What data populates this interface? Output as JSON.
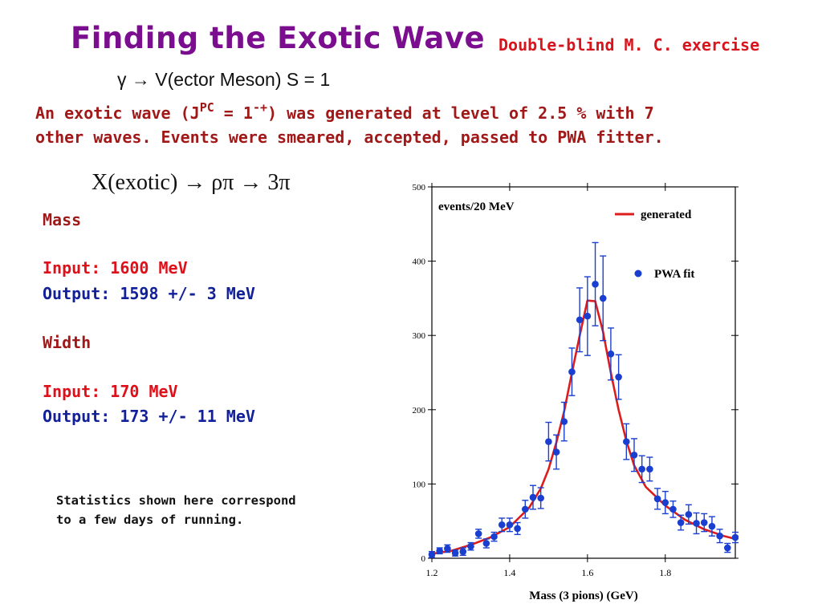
{
  "slide": {
    "title": "Finding the Exotic Wave",
    "subtitle": "Double-blind M. C. exercise",
    "reaction": "γ → V(ector Meson)   S = 1",
    "description": {
      "line1_pre": "An exotic wave (J",
      "sup_pc": "PC",
      "line1_mid": " = 1",
      "sup_qn": "-+",
      "line1_post": ") was generated at level of 2.5 % with 7",
      "line2": "other waves. Events were smeared, accepted, passed to PWA fitter."
    },
    "decay": "X(exotic) → ρπ → 3π",
    "mass": {
      "heading": "Mass",
      "input": "Input:  1600 MeV",
      "output": "Output: 1598 +/- 3 MeV"
    },
    "width": {
      "heading": "Width",
      "input": "Input: 170 MeV",
      "output": "Output:  173 +/- 11 MeV"
    },
    "note": {
      "line1": "Statistics shown here correspond",
      "line2": "to a few days of running."
    }
  },
  "chart_data": {
    "type": "scatter",
    "title": "",
    "xlabel": "Mass (3 pions)  (GeV)",
    "ylabel": "events/20 MeV",
    "xlim": [
      1.2,
      1.98
    ],
    "ylim": [
      0,
      500
    ],
    "x_ticks": [
      "1.2",
      "1.4",
      "1.6",
      "1.8"
    ],
    "y_ticks": [
      "0",
      "100",
      "200",
      "300",
      "400",
      "500"
    ],
    "legend": {
      "placement": "top-right",
      "line_label": "generated",
      "points_label": "PWA fit"
    },
    "colors": {
      "generated": "#dd1c1c",
      "pwa_fit": "#1a3fd0",
      "axis": "#000000"
    },
    "series": [
      {
        "name": "PWA fit",
        "kind": "points",
        "points": [
          {
            "x": 1.2,
            "y": 5,
            "err": 4
          },
          {
            "x": 1.22,
            "y": 10,
            "err": 4
          },
          {
            "x": 1.24,
            "y": 13,
            "err": 5
          },
          {
            "x": 1.26,
            "y": 7,
            "err": 4
          },
          {
            "x": 1.28,
            "y": 9,
            "err": 5
          },
          {
            "x": 1.3,
            "y": 16,
            "err": 5
          },
          {
            "x": 1.32,
            "y": 33,
            "err": 6
          },
          {
            "x": 1.34,
            "y": 20,
            "err": 6
          },
          {
            "x": 1.36,
            "y": 29,
            "err": 6
          },
          {
            "x": 1.38,
            "y": 45,
            "err": 9
          },
          {
            "x": 1.4,
            "y": 45,
            "err": 9
          },
          {
            "x": 1.42,
            "y": 40,
            "err": 8
          },
          {
            "x": 1.44,
            "y": 66,
            "err": 12
          },
          {
            "x": 1.46,
            "y": 82,
            "err": 16
          },
          {
            "x": 1.48,
            "y": 81,
            "err": 14
          },
          {
            "x": 1.5,
            "y": 157,
            "err": 26
          },
          {
            "x": 1.52,
            "y": 143,
            "err": 23
          },
          {
            "x": 1.54,
            "y": 184,
            "err": 26
          },
          {
            "x": 1.56,
            "y": 251,
            "err": 32
          },
          {
            "x": 1.58,
            "y": 321,
            "err": 43
          },
          {
            "x": 1.6,
            "y": 326,
            "err": 53
          },
          {
            "x": 1.62,
            "y": 369,
            "err": 56
          },
          {
            "x": 1.64,
            "y": 350,
            "err": 57
          },
          {
            "x": 1.66,
            "y": 275,
            "err": 35
          },
          {
            "x": 1.68,
            "y": 244,
            "err": 30
          },
          {
            "x": 1.7,
            "y": 157,
            "err": 24
          },
          {
            "x": 1.72,
            "y": 139,
            "err": 22
          },
          {
            "x": 1.74,
            "y": 120,
            "err": 18
          },
          {
            "x": 1.76,
            "y": 120,
            "err": 16
          },
          {
            "x": 1.78,
            "y": 80,
            "err": 14
          },
          {
            "x": 1.8,
            "y": 75,
            "err": 15
          },
          {
            "x": 1.82,
            "y": 66,
            "err": 11
          },
          {
            "x": 1.84,
            "y": 48,
            "err": 10
          },
          {
            "x": 1.86,
            "y": 59,
            "err": 13
          },
          {
            "x": 1.88,
            "y": 47,
            "err": 14
          },
          {
            "x": 1.9,
            "y": 48,
            "err": 12
          },
          {
            "x": 1.92,
            "y": 43,
            "err": 13
          },
          {
            "x": 1.94,
            "y": 30,
            "err": 9
          },
          {
            "x": 1.96,
            "y": 14,
            "err": 6
          },
          {
            "x": 1.98,
            "y": 28,
            "err": 7
          }
        ]
      },
      {
        "name": "generated",
        "kind": "line",
        "x": [
          1.2,
          1.25,
          1.3,
          1.35,
          1.4,
          1.45,
          1.48,
          1.5,
          1.52,
          1.54,
          1.56,
          1.58,
          1.6,
          1.62,
          1.64,
          1.66,
          1.68,
          1.7,
          1.72,
          1.75,
          1.8,
          1.85,
          1.9,
          1.95,
          1.98
        ],
        "y": [
          6,
          10,
          18,
          28,
          42,
          68,
          94,
          120,
          156,
          198,
          250,
          300,
          347,
          346,
          305,
          250,
          200,
          158,
          125,
          96,
          71,
          52,
          39,
          30,
          26
        ]
      }
    ]
  }
}
